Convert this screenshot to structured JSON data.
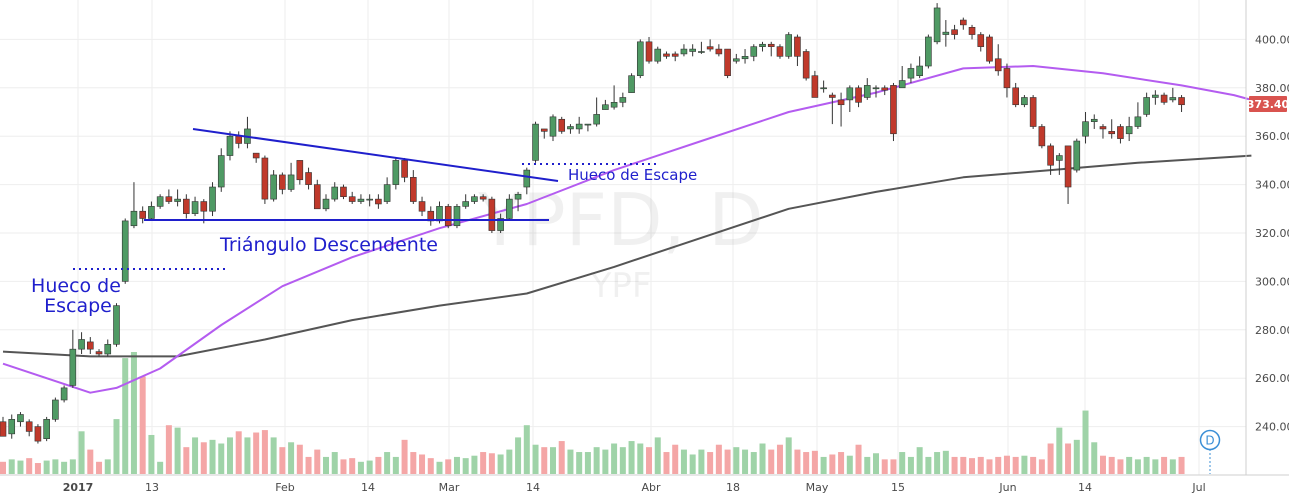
{
  "watermark": {
    "symbol": "YPFD, D",
    "name": "YPF"
  },
  "colors": {
    "up": "#4f9a64",
    "down": "#c0392b",
    "vol_up": "#9fd3a8",
    "vol_down": "#f4a6a6",
    "sma50": "#b45cf0",
    "sma200": "#555555",
    "annotation": "#1f1fcc",
    "price_tag": "#d9534f",
    "grid": "#eeeeee"
  },
  "price_tag": "373.40",
  "event_marker": "D",
  "annotations": {
    "gap1_line1": "Hueco de",
    "gap1_line2": "Escape",
    "triangle": "Triángulo Descendente",
    "gap2": "Hueco de Escape"
  },
  "chart_data": {
    "type": "candlestick",
    "x_labels": [
      "2017",
      "13",
      "Feb",
      "14",
      "Mar",
      "14",
      "Abr",
      "18",
      "May",
      "15",
      "Jun",
      "14",
      "Jul"
    ],
    "y_ticks": [
      240,
      260,
      280,
      300,
      320,
      340,
      360,
      380,
      400
    ],
    "ylim": [
      220,
      418
    ],
    "grid": true,
    "candles": [
      [
        242,
        236,
        244,
        236
      ],
      [
        237,
        243,
        245,
        235
      ],
      [
        242,
        245,
        246,
        240
      ],
      [
        242,
        238,
        243,
        236
      ],
      [
        240,
        234,
        241,
        233
      ],
      [
        235,
        243,
        244,
        234
      ],
      [
        243,
        251,
        252,
        242
      ],
      [
        251,
        256,
        257,
        250
      ],
      [
        257,
        272,
        280,
        256
      ],
      [
        272,
        276,
        279,
        270
      ],
      [
        275,
        272,
        277,
        270
      ],
      [
        271,
        270,
        272,
        269
      ],
      [
        270,
        274,
        276,
        269
      ],
      [
        274,
        290,
        291,
        273
      ],
      [
        300,
        325,
        326,
        299
      ],
      [
        323,
        329,
        341,
        322
      ],
      [
        329,
        326,
        331,
        324
      ],
      [
        326,
        331,
        333,
        325
      ],
      [
        331,
        335,
        336,
        330
      ],
      [
        335,
        333,
        338,
        332
      ],
      [
        333,
        334,
        338,
        331
      ],
      [
        334,
        328,
        336,
        326
      ],
      [
        328,
        333,
        335,
        327
      ],
      [
        333,
        329,
        334,
        324
      ],
      [
        329,
        339,
        341,
        327
      ],
      [
        339,
        352,
        355,
        337
      ],
      [
        352,
        360,
        362,
        350
      ],
      [
        360,
        357,
        362,
        355
      ],
      [
        357,
        363,
        368,
        355
      ],
      [
        353,
        351,
        353,
        349
      ],
      [
        351,
        334,
        352,
        332
      ],
      [
        334,
        344,
        346,
        333
      ],
      [
        344,
        338,
        345,
        336
      ],
      [
        338,
        344,
        349,
        337
      ],
      [
        350,
        342,
        350,
        340
      ],
      [
        345,
        340,
        347,
        338
      ],
      [
        340,
        330,
        342,
        330
      ],
      [
        330,
        334,
        336,
        329
      ],
      [
        334,
        339,
        341,
        333
      ],
      [
        339,
        335,
        340,
        334
      ],
      [
        335,
        333,
        337,
        332
      ],
      [
        333,
        334,
        336,
        332
      ],
      [
        334,
        334,
        336,
        331
      ],
      [
        334,
        332,
        336,
        330
      ],
      [
        333,
        340,
        343,
        332
      ],
      [
        340,
        350,
        351,
        338
      ],
      [
        350,
        343,
        351,
        341
      ],
      [
        343,
        333,
        346,
        332
      ],
      [
        333,
        329,
        335,
        327
      ],
      [
        329,
        325,
        331,
        323
      ],
      [
        325,
        331,
        333,
        324
      ],
      [
        331,
        323,
        332,
        322
      ],
      [
        323,
        331,
        332,
        322
      ],
      [
        331,
        333,
        336,
        330
      ],
      [
        333,
        335,
        336,
        332
      ],
      [
        335,
        334,
        336,
        333
      ],
      [
        334,
        321,
        335,
        320
      ],
      [
        321,
        326,
        328,
        320
      ],
      [
        326,
        334,
        336,
        325
      ],
      [
        334,
        336,
        337,
        329
      ],
      [
        339,
        346,
        347,
        336
      ],
      [
        350,
        365,
        366,
        349
      ],
      [
        363,
        362,
        363,
        359
      ],
      [
        360,
        368,
        369,
        358
      ],
      [
        367,
        362,
        368,
        361
      ],
      [
        363,
        364,
        365,
        361
      ],
      [
        363,
        365,
        368,
        361
      ],
      [
        365,
        365,
        365,
        362
      ],
      [
        365,
        369,
        376,
        364
      ],
      [
        371,
        373,
        375,
        371
      ],
      [
        372,
        374,
        381,
        371
      ],
      [
        374,
        376,
        378,
        372
      ],
      [
        378,
        385,
        386,
        378
      ],
      [
        385,
        399,
        400,
        384
      ],
      [
        399,
        391,
        401,
        390
      ],
      [
        391,
        396,
        397,
        390
      ],
      [
        394,
        393,
        395,
        392
      ],
      [
        394,
        393,
        395,
        391
      ],
      [
        394,
        396,
        398,
        393
      ],
      [
        395,
        396,
        398,
        393
      ],
      [
        395,
        395,
        399,
        394
      ],
      [
        397,
        396,
        400,
        395
      ],
      [
        396,
        394,
        398,
        393
      ],
      [
        396,
        385,
        396,
        384
      ],
      [
        391,
        392,
        394,
        390
      ],
      [
        392,
        393,
        396,
        390
      ],
      [
        393,
        397,
        398,
        391
      ],
      [
        397,
        398,
        399,
        395
      ],
      [
        398,
        397,
        399,
        393
      ],
      [
        397,
        393,
        398,
        392
      ],
      [
        393,
        402,
        403,
        392
      ],
      [
        401,
        393,
        402,
        389
      ],
      [
        395,
        384,
        396,
        383
      ],
      [
        385,
        376,
        387,
        376
      ],
      [
        380,
        380,
        383,
        378
      ],
      [
        377,
        376,
        378,
        365
      ],
      [
        375,
        373,
        378,
        364
      ],
      [
        375,
        380,
        381,
        370
      ],
      [
        380,
        374,
        381,
        372
      ],
      [
        376,
        381,
        384,
        375
      ],
      [
        380,
        380,
        381,
        376
      ],
      [
        380,
        379,
        381,
        377
      ],
      [
        381,
        361,
        382,
        358
      ],
      [
        380,
        383,
        389,
        380
      ],
      [
        384,
        388,
        390,
        382
      ],
      [
        385,
        389,
        393,
        384
      ],
      [
        389,
        401,
        402,
        388
      ],
      [
        399,
        413,
        415,
        398
      ],
      [
        402,
        403,
        408,
        397
      ],
      [
        404,
        402,
        406,
        400
      ],
      [
        408,
        406,
        409,
        404
      ],
      [
        405,
        402,
        406,
        400
      ],
      [
        402,
        397,
        403,
        395
      ],
      [
        401,
        391,
        402,
        390
      ],
      [
        392,
        387,
        398,
        385
      ],
      [
        388,
        380,
        390,
        376
      ],
      [
        380,
        373,
        382,
        372
      ],
      [
        373,
        376,
        377,
        372
      ],
      [
        376,
        364,
        377,
        363
      ],
      [
        364,
        356,
        365,
        355
      ],
      [
        356,
        348,
        357,
        344
      ],
      [
        350,
        352,
        353,
        344
      ],
      [
        356,
        339,
        341,
        332
      ],
      [
        346,
        358,
        359,
        345
      ],
      [
        360,
        366,
        370,
        357
      ],
      [
        366,
        367,
        369,
        363
      ],
      [
        364,
        363,
        365,
        359
      ],
      [
        362,
        361,
        367,
        359
      ],
      [
        364,
        359,
        365,
        357
      ],
      [
        361,
        364,
        368,
        358
      ],
      [
        364,
        368,
        374,
        363
      ],
      [
        369,
        376,
        378,
        368
      ],
      [
        376,
        377,
        379,
        373
      ],
      [
        377,
        374,
        378,
        373
      ],
      [
        375,
        376,
        380,
        374
      ],
      [
        376,
        373,
        377,
        370
      ]
    ],
    "volume_ratio": [
      0.1,
      0.12,
      0.11,
      0.13,
      0.09,
      0.11,
      0.12,
      0.1,
      0.12,
      0.35,
      0.2,
      0.1,
      0.12,
      0.45,
      0.95,
      1.0,
      0.8,
      0.32,
      0.1,
      0.4,
      0.38,
      0.22,
      0.3,
      0.26,
      0.28,
      0.25,
      0.3,
      0.35,
      0.3,
      0.34,
      0.36,
      0.3,
      0.22,
      0.26,
      0.24,
      0.14,
      0.2,
      0.14,
      0.18,
      0.12,
      0.13,
      0.1,
      0.11,
      0.14,
      0.18,
      0.14,
      0.28,
      0.18,
      0.16,
      0.13,
      0.1,
      0.12,
      0.14,
      0.13,
      0.15,
      0.18,
      0.17,
      0.16,
      0.2,
      0.3,
      0.4,
      0.24,
      0.22,
      0.22,
      0.27,
      0.2,
      0.18,
      0.18,
      0.22,
      0.2,
      0.25,
      0.22,
      0.27,
      0.25,
      0.22,
      0.3,
      0.18,
      0.24,
      0.2,
      0.16,
      0.2,
      0.18,
      0.24,
      0.2,
      0.22,
      0.2,
      0.18,
      0.25,
      0.2,
      0.24,
      0.3,
      0.2,
      0.18,
      0.19,
      0.14,
      0.16,
      0.18,
      0.15,
      0.24,
      0.14,
      0.17,
      0.12,
      0.12,
      0.18,
      0.14,
      0.22,
      0.14,
      0.18,
      0.19,
      0.14,
      0.14,
      0.13,
      0.14,
      0.12,
      0.14,
      0.15,
      0.14,
      0.15,
      0.14,
      0.12,
      0.25,
      0.38,
      0.25,
      0.28,
      0.52,
      0.26,
      0.15,
      0.14,
      0.12,
      0.14,
      0.12,
      0.14,
      0.12,
      0.14,
      0.12,
      0.14
    ],
    "sma50": [
      [
        0,
        266
      ],
      [
        10,
        254
      ],
      [
        13,
        256
      ],
      [
        18,
        264
      ],
      [
        25,
        282
      ],
      [
        32,
        298
      ],
      [
        40,
        310
      ],
      [
        50,
        322
      ],
      [
        60,
        332
      ],
      [
        70,
        346
      ],
      [
        80,
        358
      ],
      [
        90,
        370
      ],
      [
        100,
        378
      ],
      [
        110,
        388
      ],
      [
        118,
        389
      ],
      [
        126,
        386
      ],
      [
        135,
        381
      ],
      [
        141,
        377
      ],
      [
        143,
        375
      ]
    ],
    "sma200": [
      [
        0,
        271
      ],
      [
        10,
        269
      ],
      [
        20,
        269
      ],
      [
        30,
        276
      ],
      [
        40,
        284
      ],
      [
        50,
        290
      ],
      [
        60,
        295
      ],
      [
        70,
        306
      ],
      [
        80,
        318
      ],
      [
        90,
        330
      ],
      [
        100,
        337
      ],
      [
        110,
        343
      ],
      [
        120,
        346
      ],
      [
        130,
        349
      ],
      [
        143,
        352
      ]
    ]
  }
}
